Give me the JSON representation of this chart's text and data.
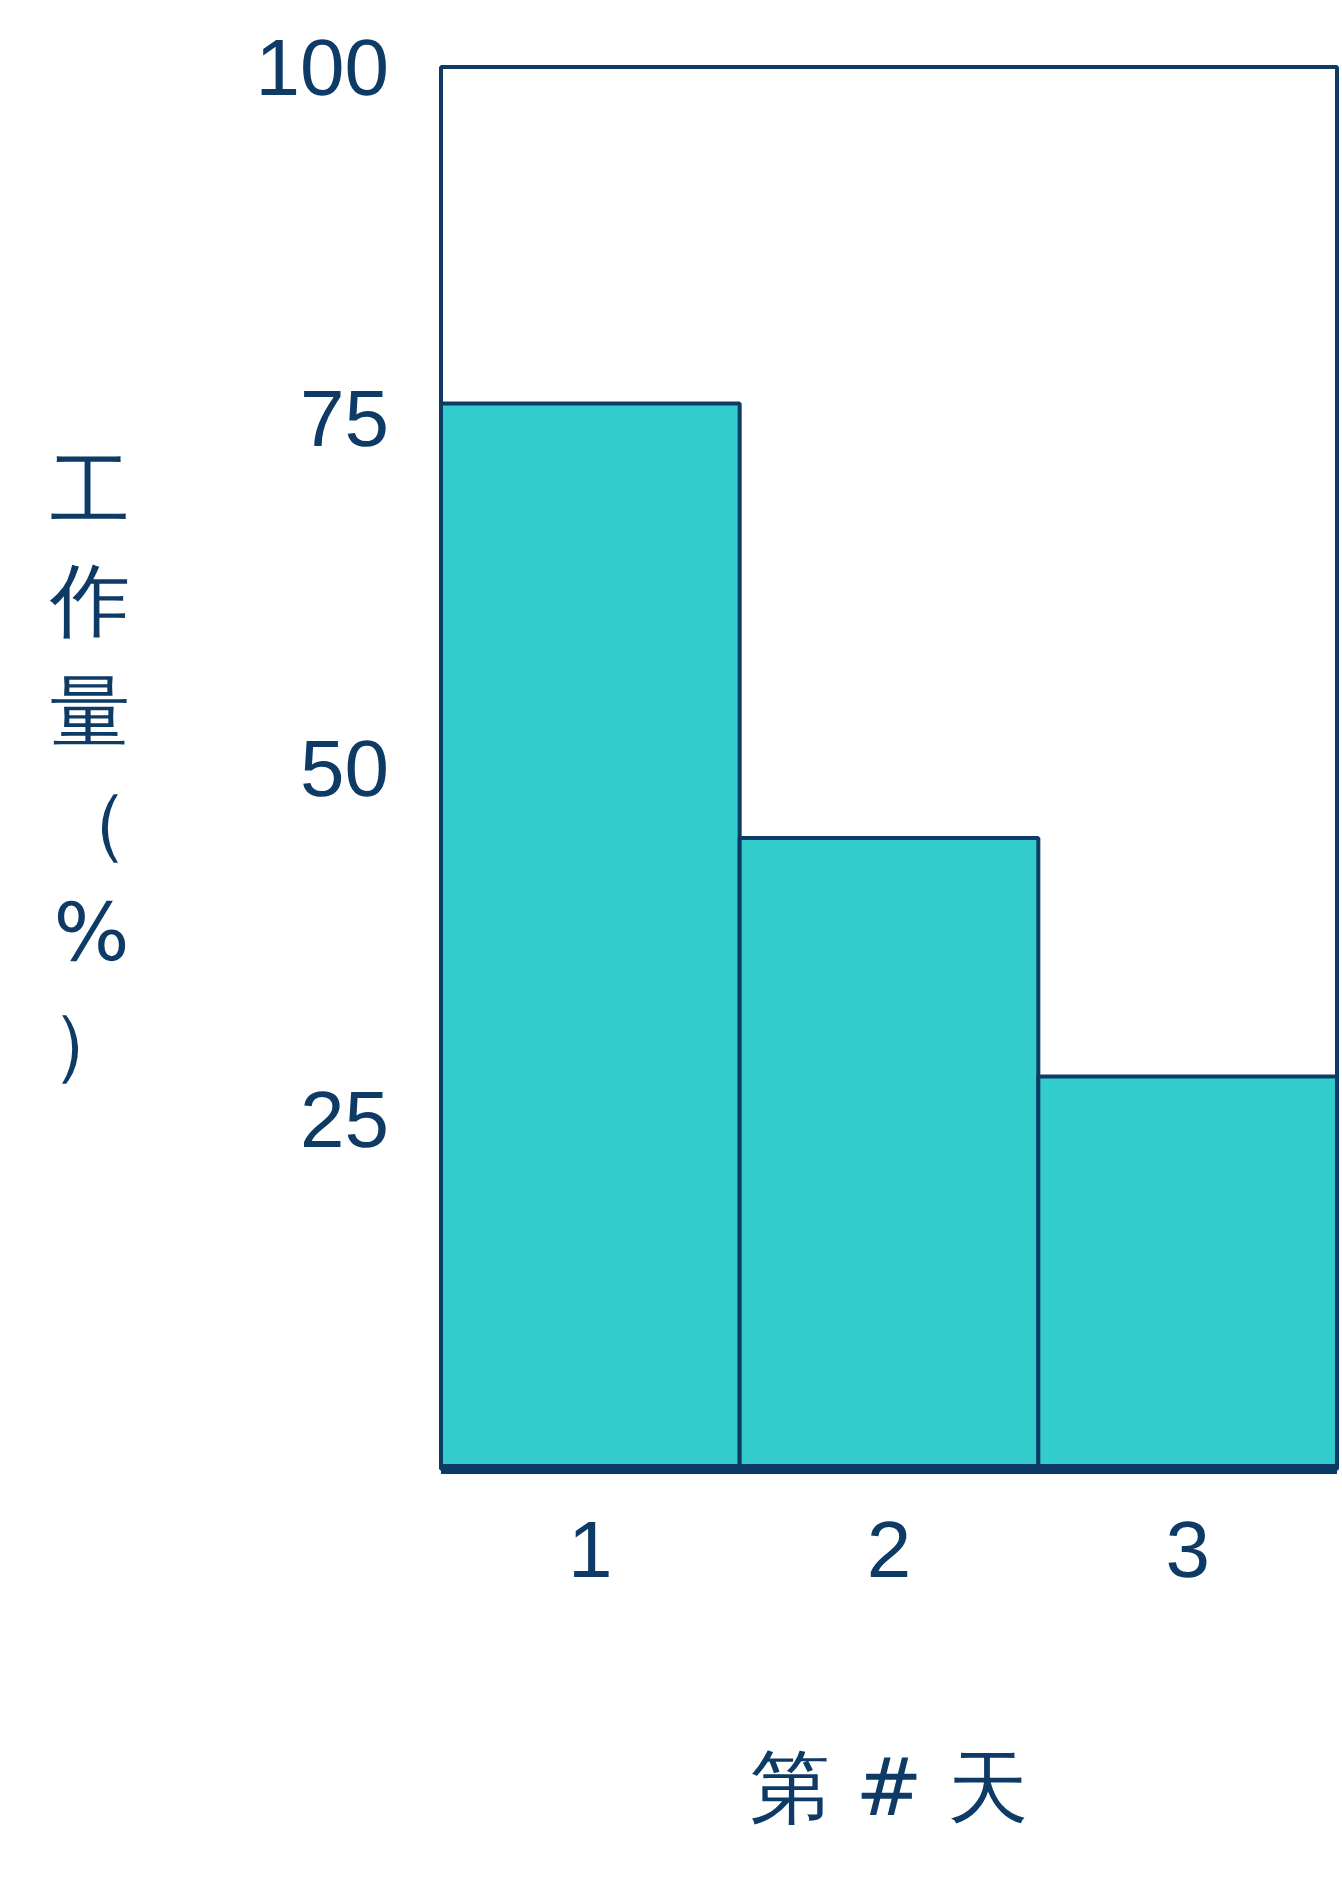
{
  "chart_data": {
    "type": "bar",
    "xlabel": "第 # 天",
    "ylabel": "工作量（%）",
    "categories": [
      "1",
      "2",
      "3"
    ],
    "values": [
      76,
      45,
      28
    ],
    "color": "#33cccc",
    "ylim": [
      0,
      100
    ],
    "yticks": [
      25,
      50,
      75,
      100
    ],
    "grid": false
  }
}
